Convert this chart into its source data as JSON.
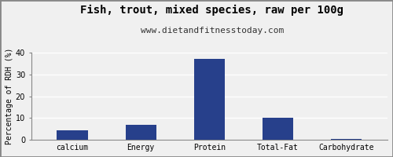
{
  "title": "Fish, trout, mixed species, raw per 100g",
  "subtitle": "www.dietandfitnesstoday.com",
  "categories": [
    "calcium",
    "Energy",
    "Protein",
    "Total-Fat",
    "Carbohydrate"
  ],
  "values": [
    4.5,
    7.0,
    37.0,
    10.0,
    0.3
  ],
  "bar_color": "#27408B",
  "ylabel": "Percentage of RDH (%)",
  "ylim": [
    0,
    40
  ],
  "yticks": [
    0,
    10,
    20,
    30,
    40
  ],
  "background_color": "#f0f0f0",
  "plot_bg_color": "#f0f0f0",
  "grid_color": "#ffffff",
  "title_fontsize": 10,
  "subtitle_fontsize": 8,
  "ylabel_fontsize": 7,
  "tick_fontsize": 7,
  "border_color": "#888888",
  "bar_width": 0.45
}
